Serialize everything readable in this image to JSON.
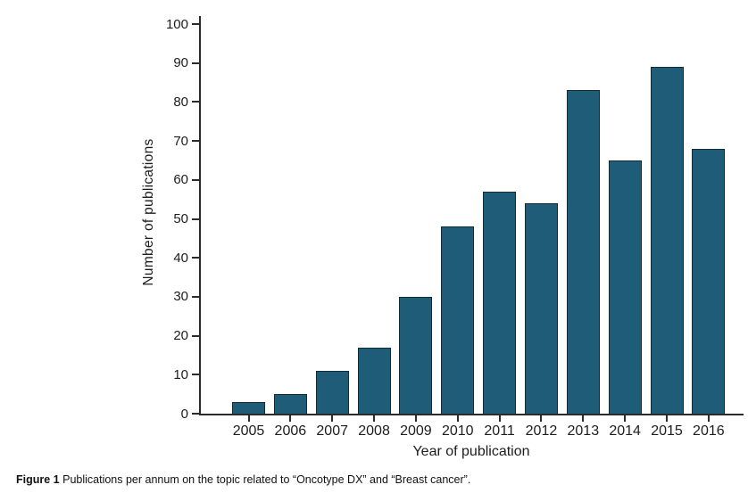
{
  "figure": {
    "caption_label": "Figure 1",
    "caption_text": "Publications per annum on the topic related to “Oncotype DX” and “Breast cancer”."
  },
  "chart_data": {
    "type": "bar",
    "title": "",
    "xlabel": "Year of publication",
    "ylabel": "Number of publications",
    "categories": [
      "2005",
      "2006",
      "2007",
      "2008",
      "2009",
      "2010",
      "2011",
      "2012",
      "2013",
      "2014",
      "2015",
      "2016"
    ],
    "values": [
      3,
      5,
      11,
      17,
      30,
      48,
      57,
      54,
      83,
      65,
      89,
      68
    ],
    "ylim": [
      0,
      100
    ],
    "yticks": [
      0,
      10,
      20,
      30,
      40,
      50,
      60,
      70,
      80,
      90,
      100
    ],
    "grid": false,
    "legend_position": "none",
    "bar_color": "#1e5c78",
    "bar_border_color": "#122b38",
    "axis_color": "#2b2b2b"
  }
}
